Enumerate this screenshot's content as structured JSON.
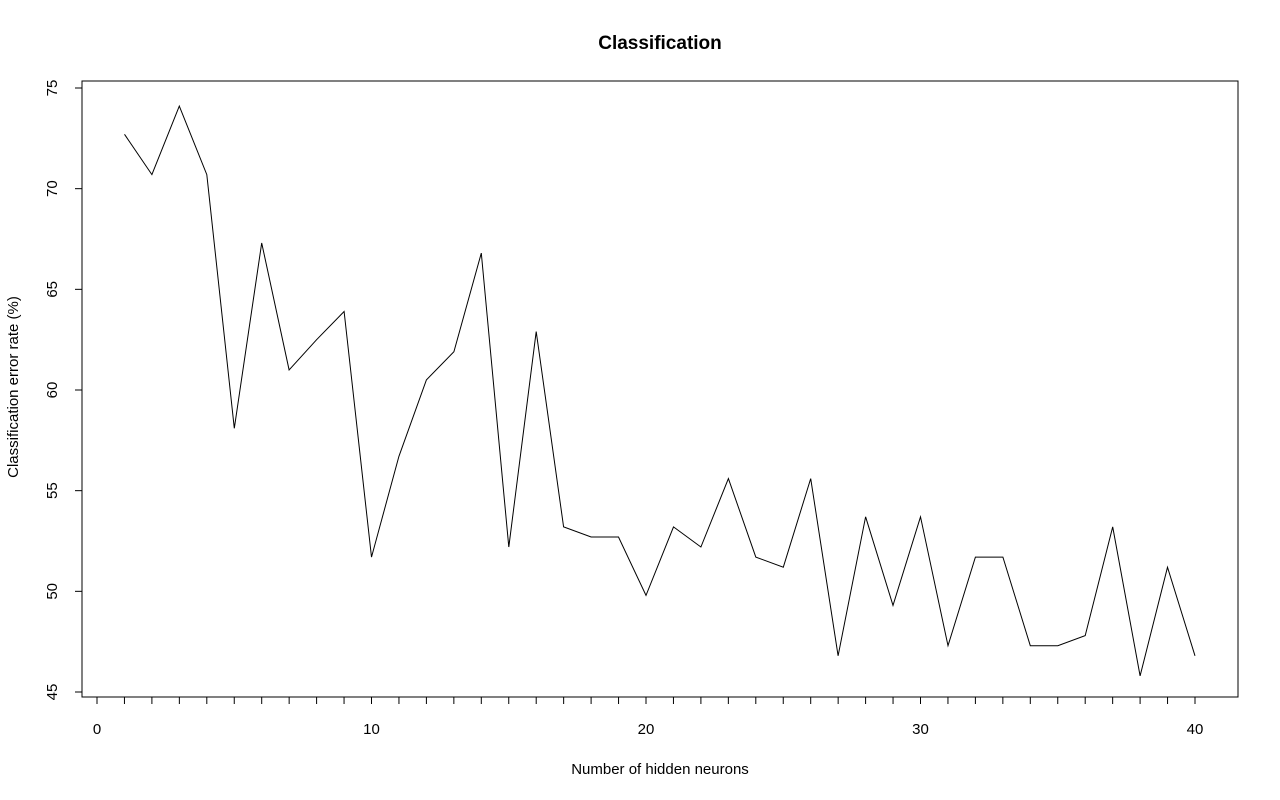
{
  "chart_data": {
    "type": "line",
    "title": "Classification",
    "xlabel": "Number of hidden neurons",
    "ylabel": "Classification error rate (%)",
    "xlim": [
      0,
      40
    ],
    "ylim": [
      45,
      75
    ],
    "x_ticks": [
      0,
      10,
      20,
      30,
      40
    ],
    "y_ticks": [
      45,
      50,
      55,
      60,
      65,
      70,
      75
    ],
    "x_minor_ticks": [
      1,
      2,
      3,
      4,
      5,
      6,
      7,
      8,
      9,
      10,
      11,
      12,
      13,
      14,
      15,
      16,
      17,
      18,
      19,
      20,
      21,
      22,
      23,
      24,
      25,
      26,
      27,
      28,
      29,
      30,
      31,
      32,
      33,
      34,
      35,
      36,
      37,
      38,
      39,
      40
    ],
    "x_tick_labels": [
      "0",
      "10",
      "20",
      "30",
      "40"
    ],
    "y_tick_labels": [
      "45",
      "50",
      "55",
      "60",
      "65",
      "70",
      "75"
    ],
    "grid": false,
    "series": [
      {
        "color": "#000000",
        "x": [
          1,
          2,
          3,
          4,
          5,
          6,
          7,
          8,
          9,
          10,
          11,
          12,
          13,
          14,
          15,
          16,
          17,
          18,
          19,
          20,
          21,
          22,
          23,
          24,
          25,
          26,
          27,
          28,
          29,
          30,
          31,
          32,
          33,
          34,
          35,
          36,
          37,
          38,
          39,
          40
        ],
        "y": [
          72.7,
          70.7,
          74.1,
          70.7,
          58.1,
          67.3,
          61.0,
          62.5,
          63.9,
          51.7,
          56.7,
          60.5,
          61.9,
          66.8,
          52.2,
          62.9,
          53.2,
          52.7,
          52.7,
          49.8,
          53.2,
          52.2,
          55.6,
          51.7,
          51.2,
          55.6,
          46.8,
          53.7,
          49.3,
          53.7,
          47.3,
          51.7,
          51.7,
          47.3,
          47.3,
          47.8,
          53.2,
          45.8,
          51.2,
          46.8
        ]
      }
    ]
  }
}
